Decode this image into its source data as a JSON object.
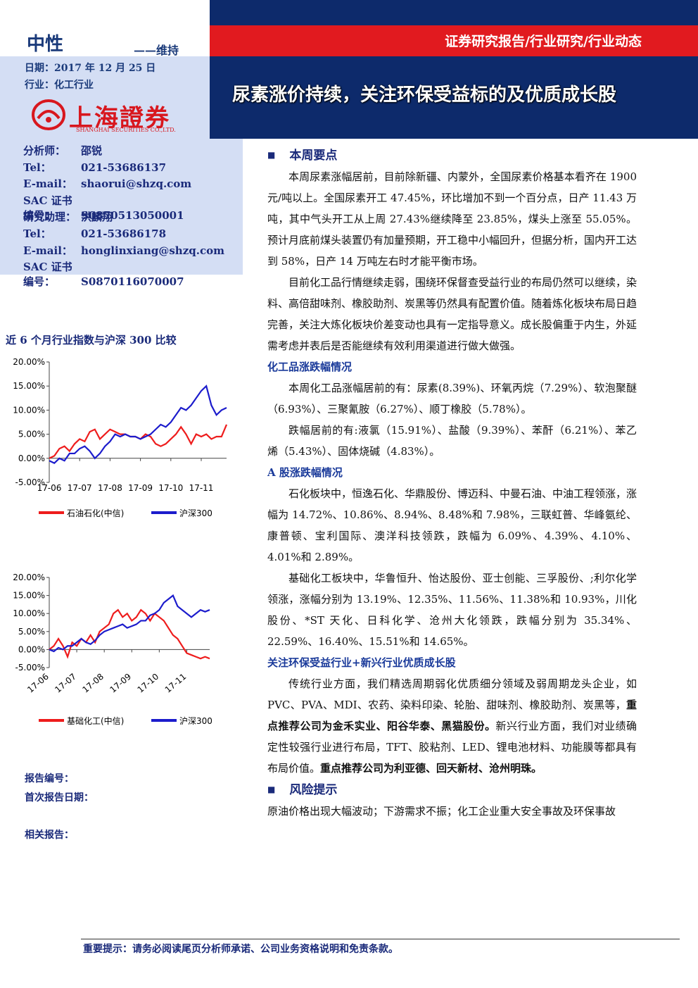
{
  "header": {
    "rating": "中性",
    "rating_note": "——维持",
    "date": "日期：2017 年 12 月 25 日",
    "industry": "行业：化工行业",
    "logo": "上海證券",
    "logo_sub": "SHANGHAI SECURITIES CO.,LTD.",
    "breadcrumb": "证券研究报告/行业研究/行业动态",
    "title": "尿素涨价持续，关注环保受益标的及优质成长股"
  },
  "analysts": [
    [
      "分析师：",
      "邵锐"
    ],
    [
      "Tel：",
      "021-53686137"
    ],
    [
      "E-mail：",
      "shaorui@shzq.com"
    ],
    [
      "SAC 证书编号：",
      "S0870513050001"
    ],
    [
      "研究助理：",
      "洪麟翔"
    ],
    [
      "Tel：",
      "021-53686178"
    ],
    [
      "E-mail：",
      "honglinxiang@shzq.com"
    ],
    [
      "SAC 证书编号：",
      "S0870116070007"
    ]
  ],
  "side_chart_title": "近 6 个月行业指数与沪深 300 比较",
  "chart_data": [
    {
      "type": "line",
      "categories": [
        "17-06",
        null,
        null,
        null,
        null,
        null,
        "17-07",
        null,
        null,
        null,
        null,
        null,
        "17-08",
        null,
        null,
        null,
        null,
        null,
        "17-09",
        null,
        null,
        null,
        null,
        null,
        "17-10",
        null,
        null,
        null,
        null,
        null,
        "17-11",
        null,
        null,
        null,
        null,
        null
      ],
      "series": [
        {
          "name": "石油石化(中信)",
          "color": "#ee1c1c",
          "values": [
            0,
            0.5,
            2,
            2.5,
            1.5,
            3,
            4,
            3.5,
            5.5,
            6,
            4,
            5,
            6,
            5.5,
            5,
            5,
            4.5,
            4.5,
            4,
            5,
            4.5,
            3,
            2.5,
            3,
            4,
            5,
            6.5,
            5,
            3,
            5,
            4.5,
            5,
            4,
            4.5,
            4.5,
            7
          ]
        },
        {
          "name": "沪深300",
          "color": "#1c1ccc",
          "values": [
            -0.5,
            -1,
            0,
            -0.5,
            1,
            1,
            2,
            2.5,
            1.5,
            0,
            1,
            2.5,
            3.5,
            5,
            4.5,
            5,
            4.5,
            4.5,
            4,
            4.5,
            5,
            6,
            7,
            6.5,
            7.5,
            9,
            10.5,
            10,
            11,
            12.5,
            14,
            15,
            11,
            9,
            10,
            10.5
          ]
        }
      ],
      "ylim": [
        -5,
        20
      ],
      "yticks": [
        {
          "value": -5,
          "label": "-5.00%"
        },
        {
          "value": 0,
          "label": "0.00%"
        },
        {
          "value": 5,
          "label": "5.00%"
        },
        {
          "value": 10,
          "label": "10.00%"
        },
        {
          "value": 15,
          "label": "15.00%"
        },
        {
          "value": 20,
          "label": "20.00%"
        }
      ],
      "rotate_labels": false,
      "legend": "bottom"
    },
    {
      "type": "line",
      "categories": [
        "17-06",
        null,
        null,
        null,
        null,
        null,
        "17-07",
        null,
        null,
        null,
        null,
        null,
        "17-08",
        null,
        null,
        null,
        null,
        null,
        "17-09",
        null,
        null,
        null,
        null,
        null,
        "17-10",
        null,
        null,
        null,
        null,
        null,
        "17-11",
        null,
        null,
        null,
        null,
        null
      ],
      "series": [
        {
          "name": "基础化工(中信)",
          "color": "#ee1c1c",
          "values": [
            0,
            1,
            3,
            1,
            -2,
            2,
            1,
            3,
            2,
            4,
            2,
            5,
            6,
            7,
            10,
            11,
            9,
            10,
            8,
            9,
            11,
            10,
            8,
            10,
            9,
            8,
            6,
            4,
            3,
            1,
            -1,
            -1.5,
            -2,
            -2.5,
            -2,
            -2.5
          ]
        },
        {
          "name": "沪深300",
          "color": "#1c1ccc",
          "values": [
            0,
            -0.5,
            0.5,
            0,
            1,
            1,
            2,
            3,
            2,
            1.5,
            2.5,
            4,
            5,
            5.5,
            6,
            6.5,
            7,
            6,
            6.5,
            7,
            8,
            8,
            9.5,
            10,
            11,
            13,
            14,
            15,
            12,
            11,
            10,
            9,
            10,
            11,
            10.5,
            11
          ]
        }
      ],
      "ylim": [
        -5,
        20
      ],
      "yticks": [
        {
          "value": -5,
          "label": "-5.00%"
        },
        {
          "value": 0,
          "label": "0.00%"
        },
        {
          "value": 5,
          "label": "5.00%"
        },
        {
          "value": 10,
          "label": "10.00%"
        },
        {
          "value": 15,
          "label": "15.00%"
        },
        {
          "value": 20,
          "label": "20.00%"
        }
      ],
      "rotate_labels": true,
      "legend": "bottom"
    }
  ],
  "report_meta": [
    "报告编号：",
    "首次报告日期：",
    "相关报告："
  ],
  "body": [
    {
      "kind": "heading",
      "text": "本周要点"
    },
    {
      "kind": "para",
      "runs": [
        {
          "text": "本周尿素涨幅居前，目前除新疆、内蒙外，全国尿素价格基本看齐在 1900 元/吨以上。全国尿素开工 47.45%，环比增加不到一个百分点，日产 11.43 万吨，其中气头开工从上周 27.43%继续降至 23.85%，煤头上涨至 55.05%。预计月底前煤头装置仍有加量预期，开工稳中小幅回升，但据分析，国内开工达到 58%，日产 14 万吨左右时才能平衡市场。",
          "bold": false
        }
      ]
    },
    {
      "kind": "para",
      "runs": [
        {
          "text": "目前化工品行情继续走弱，围绕环保督查受益行业的布局仍然可以继续，染料、高倍甜味剂、橡胶助剂、炭黑等仍然具有配置价值。随着炼化板块布局日趋完善，关注大炼化板块价差变动也具有一定指导意义。成长股偏重于内生，外延需考虑并表后是否能继续有效利用渠道进行做大做强。",
          "bold": false
        }
      ]
    },
    {
      "kind": "sub",
      "text": "化工品涨跌幅情况"
    },
    {
      "kind": "para",
      "runs": [
        {
          "text": "本周化工品涨幅居前的有：尿素(8.39%)、环氧丙烷（7.29%）、软泡聚醚（6.93%）、三聚氰胺（6.27%）、顺丁橡胶（5.78%）。",
          "bold": false
        }
      ]
    },
    {
      "kind": "para",
      "runs": [
        {
          "text": "跌幅居前的有:液氯（15.91%）、盐酸（9.39%）、苯酐（6.21%）、苯乙烯（5.43%）、固体烧碱（4.83%）。",
          "bold": false
        }
      ]
    },
    {
      "kind": "sub",
      "text": "A 股涨跌幅情况"
    },
    {
      "kind": "para",
      "runs": [
        {
          "text": "石化板块中，恒逸石化、华鼎股份、博迈科、中曼石油、中油工程领涨，涨幅为 14.72%、10.86%、8.94%、8.48%和 7.98%，三联虹普、华峰氨纶、康普顿、宝利国际、澳洋科技领跌，跌幅为 6.09%、4.39%、4.10%、4.01%和 2.89%。",
          "bold": false
        }
      ]
    },
    {
      "kind": "para",
      "runs": [
        {
          "text": "基础化工板块中，华鲁恒升、怡达股份、亚士创能、三孚股份、;利尔化学领涨，涨幅分别为 13.19%、12.35%、11.56%、11.38%和 10.93%，川化股份、*ST 天化、日科化学、沧州大化领跌，跌幅分别为 35.34%、22.59%、16.40%、15.51%和 14.65%。",
          "bold": false
        }
      ]
    },
    {
      "kind": "sub",
      "text": "关注环保受益行业+新兴行业优质成长股"
    },
    {
      "kind": "para",
      "runs": [
        {
          "text": "传统行业方面，我们精选周期弱化优质细分领域及弱周期龙头企业，如 PVC、PVA、MDI、农药、染料印染、轮胎、甜味剂、橡胶助剂、炭黑等，",
          "bold": false
        },
        {
          "text": "重点推荐公司为金禾实业、阳谷华泰、黑猫股份。",
          "bold": true
        },
        {
          "text": "新兴行业方面，我们对业绩确定性较强行业进行布局，TFT、胶粘剂、LED、锂电池材料、功能膜等都具有布局价值。",
          "bold": false
        },
        {
          "text": "重点推荐公司为利亚德、回天新材、沧州明珠。",
          "bold": true
        }
      ]
    },
    {
      "kind": "heading",
      "text": "风险提示"
    },
    {
      "kind": "plain",
      "runs": [
        {
          "text": "原油价格出现大幅波动；下游需求不振；化工企业重大安全事故及环保事故",
          "bold": false
        }
      ]
    }
  ],
  "footer": "重要提示：请务必阅读尾页分析师承诺、公司业务资格说明和免责条款。"
}
